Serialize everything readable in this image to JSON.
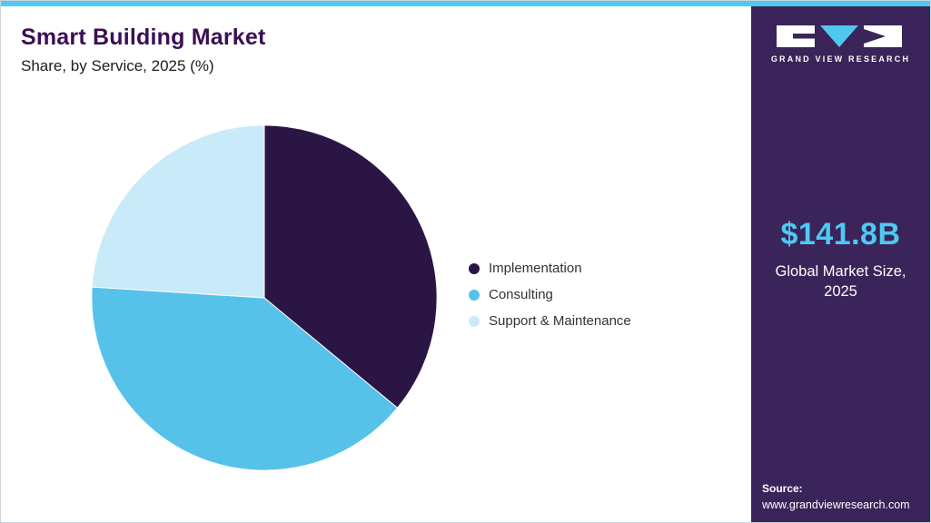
{
  "page": {
    "title": "Smart Building Market",
    "subtitle": "Share, by Service, 2025 (%)"
  },
  "chart_data": {
    "type": "pie",
    "title": "Smart Building Market Share, by Service, 2025 (%)",
    "start_angle_deg": 0,
    "direction": "clockwise",
    "legend_position": "right",
    "slices": [
      {
        "label": "Implementation",
        "value": 36,
        "color": "#2B1544"
      },
      {
        "label": "Consulting",
        "value": 40,
        "color": "#56C2E9"
      },
      {
        "label": "Support & Maintenance",
        "value": 24,
        "color": "#C8EAF9"
      }
    ]
  },
  "sidebar": {
    "brand": "GRAND VIEW RESEARCH",
    "market_size": "$141.8B",
    "market_size_label_line1": "Global Market Size,",
    "market_size_label_line2": "2025",
    "source_label": "Source:",
    "source_url": "www.grandviewresearch.com"
  },
  "colors": {
    "accent_cyan": "#4EC9F2",
    "sidebar_bg": "#3A2459",
    "title": "#3A0F54",
    "logo_triangle": "#4FC8F0"
  }
}
